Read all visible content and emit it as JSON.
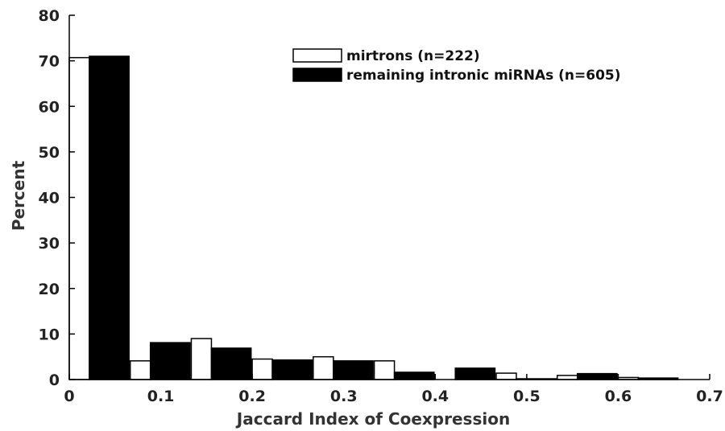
{
  "chart_data": {
    "type": "bar",
    "xlabel": "Jaccard Index of Coexpression",
    "ylabel": "Percent",
    "xlim": [
      0,
      0.7
    ],
    "ylim": [
      0,
      80
    ],
    "x_ticks": [
      "0",
      "0.1",
      "0.2",
      "0.3",
      "0.4",
      "0.5",
      "0.6",
      "0.7"
    ],
    "y_ticks": [
      "0",
      "10",
      "20",
      "30",
      "40",
      "50",
      "60",
      "70",
      "80"
    ],
    "bin_centers": [
      0.0333,
      0.1,
      0.1667,
      0.2333,
      0.3,
      0.3667,
      0.4333,
      0.5,
      0.5667,
      0.6333
    ],
    "bin_width": 0.0667,
    "series": [
      {
        "name": "mirtrons (n=222)",
        "color": "#ffffff",
        "values": [
          70.7,
          4.1,
          9.0,
          4.5,
          5.0,
          4.1,
          0,
          1.4,
          0.9,
          0.45
        ]
      },
      {
        "name": "remaining intronic miRNAs (n=605)",
        "color": "#000000",
        "values": [
          71.0,
          8.1,
          6.9,
          4.3,
          4.1,
          1.6,
          2.5,
          0.17,
          1.3,
          0.33
        ]
      }
    ],
    "legend_position": "top-right",
    "grid": false
  }
}
